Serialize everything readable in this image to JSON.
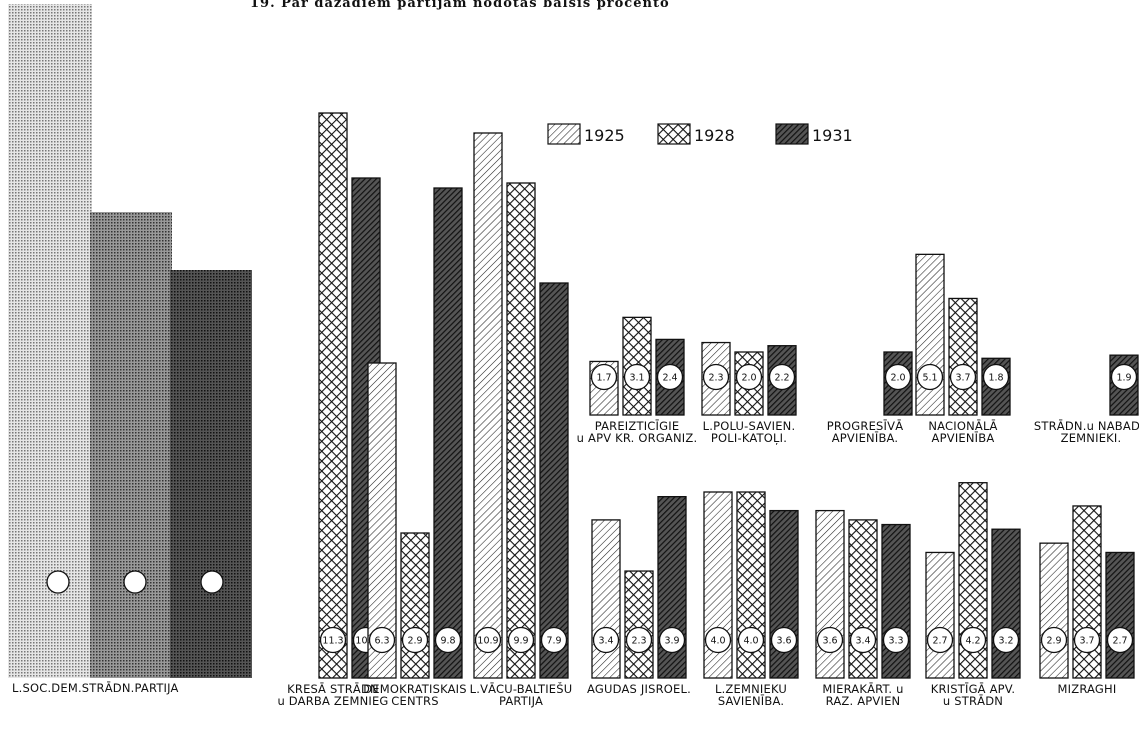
{
  "page": {
    "title": "19. Par dažādiem partijām nodotās balsis procentos"
  },
  "chart_data": {
    "type": "bar",
    "title": "19. Par dažādiem partijām nodotās balsis procentos",
    "legend": {
      "placement": "top-center",
      "entries": [
        "1925",
        "1928",
        "1931"
      ]
    },
    "series_names": [
      "1925",
      "1928",
      "1931"
    ],
    "groups": [
      {
        "id": "partial-left",
        "label": "",
        "values": [
          null,
          null,
          null
        ]
      },
      {
        "id": "kresa-stradn",
        "label": [
          "KRESĀ STRĀDN",
          "u DARBA ZEMNIEG"
        ],
        "values": [
          null,
          11.3,
          10.0
        ]
      },
      {
        "id": "demokratiskais-centrs",
        "label": [
          "DEMOKRATISKAIS",
          "CENTRS"
        ],
        "values": [
          6.3,
          2.9,
          9.8
        ]
      },
      {
        "id": "vacu-baltieju",
        "label": [
          "L.VĀCU-BALTIEŠU",
          "PARTIJA"
        ],
        "values": [
          10.9,
          9.9,
          7.9
        ]
      },
      {
        "id": "pareiztic",
        "label": [
          "PAREIZTICĪGIE",
          "u APV KR. ORGANIZ."
        ],
        "values": [
          1.7,
          3.1,
          2.4
        ]
      },
      {
        "id": "poli-katoli",
        "label": [
          "L.POLU-SAVIEN.",
          "POLI-KATOĻI."
        ],
        "values": [
          2.3,
          2.0,
          2.2
        ]
      },
      {
        "id": "progresiva",
        "label": [
          "PROGRESĪVĀ",
          "APVIENĪBA."
        ],
        "values": [
          null,
          null,
          2.0
        ]
      },
      {
        "id": "nacionala",
        "label": [
          "NACIONĀLĀ",
          "APVIENĪBA"
        ],
        "values": [
          5.1,
          3.7,
          1.8
        ]
      },
      {
        "id": "stradn-nabadz",
        "label": [
          "STRĀDN.u NABADZ",
          "ZEMNIEKI."
        ],
        "values": [
          null,
          null,
          1.9
        ]
      },
      {
        "id": "aguda",
        "label": [
          "AGUDAS JISROEL."
        ],
        "values": [
          3.4,
          2.3,
          3.9
        ]
      },
      {
        "id": "zemnieku-savieniba",
        "label": [
          "L.ZEMNIEKU",
          "SAVIENĪBA."
        ],
        "values": [
          4.0,
          4.0,
          3.6
        ]
      },
      {
        "id": "mierakart",
        "label": [
          "MIERAKĀRT. u",
          "RAZ. APVIEN"
        ],
        "values": [
          3.6,
          3.4,
          3.3
        ]
      },
      {
        "id": "kristiga",
        "label": [
          "KRISTĪGĀ APV.",
          "u STRĀDN"
        ],
        "values": [
          2.7,
          4.2,
          3.2
        ]
      },
      {
        "id": "mizraghi",
        "label": [
          "MIZRAGHI"
        ],
        "values": [
          2.9,
          3.7,
          2.7
        ]
      }
    ],
    "partial_left_label": "L.SOC.DEM.STRĀDN.PARTIJA",
    "value_labels": {
      "kresa-stradn": [
        "",
        "11.3",
        "10.0"
      ],
      "demokratiskais-centrs": [
        "6.3",
        "2.9",
        "9.8"
      ],
      "vacu-baltieju": [
        "10.9",
        "9.9",
        "7.9"
      ],
      "pareiztic": [
        "1.7",
        "3.1",
        "2.4"
      ],
      "poli-katoli": [
        "2.3",
        "2.0",
        "2.2"
      ],
      "progresiva": [
        "",
        "",
        "2.0"
      ],
      "nacionala": [
        "5.1",
        "3.7",
        "1.8"
      ],
      "stradn-nabadz": [
        "",
        "",
        "1.9"
      ],
      "aguda": [
        "3.4",
        "2.3",
        "3.9"
      ],
      "zemnieku-savieniba": [
        "4.0",
        "4.0",
        "3.6"
      ],
      "mierakart": [
        "3.6",
        "3.4",
        "3.3"
      ],
      "kristiga": [
        "2.7",
        "4.2",
        "3.2"
      ],
      "mizraghi": [
        "2.9",
        "3.7",
        "2.7"
      ]
    },
    "colors": {
      "ink": "#111111",
      "background": "#ffffff"
    }
  }
}
